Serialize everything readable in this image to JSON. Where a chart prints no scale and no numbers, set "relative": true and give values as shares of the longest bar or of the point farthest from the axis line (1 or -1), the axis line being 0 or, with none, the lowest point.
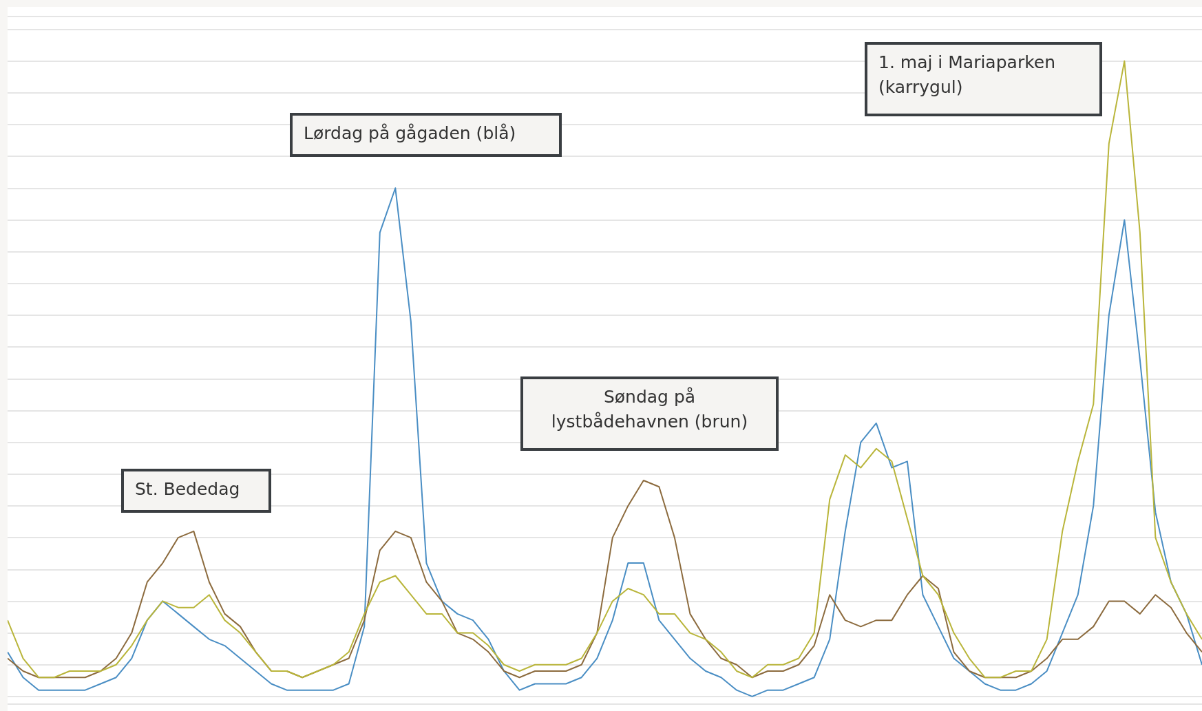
{
  "chart_data": {
    "type": "line",
    "relative": true,
    "grid": "y",
    "marker": "none",
    "categories": [
      null,
      null,
      null,
      null,
      null,
      null,
      null,
      null,
      null,
      null,
      null,
      null,
      null,
      null,
      null,
      null,
      null,
      null,
      null,
      null,
      null,
      null,
      null,
      null,
      null,
      null,
      null,
      null,
      null,
      null,
      null,
      null,
      null,
      null,
      null,
      null,
      null,
      null,
      null,
      null,
      null,
      null,
      null,
      null,
      null,
      null,
      null,
      null,
      null,
      null,
      null,
      null,
      null,
      null,
      null,
      null,
      null,
      null,
      null,
      null,
      null,
      null,
      null,
      null,
      null,
      null,
      null,
      null,
      null,
      null,
      null,
      null,
      null,
      null,
      null,
      null,
      null,
      null
    ],
    "series": [
      {
        "color": "#4a8ec4",
        "values": [
          0.07,
          0.03,
          0.01,
          0.01,
          0.01,
          0.01,
          0.02,
          0.03,
          0.06,
          0.12,
          0.15,
          0.13,
          0.11,
          0.09,
          0.08,
          0.06,
          0.04,
          0.02,
          0.01,
          0.01,
          0.01,
          0.01,
          0.02,
          0.11,
          0.73,
          0.8,
          0.59,
          0.21,
          0.15,
          0.13,
          0.12,
          0.09,
          0.04,
          0.01,
          0.02,
          0.02,
          0.02,
          0.03,
          0.06,
          0.12,
          0.21,
          0.21,
          0.12,
          0.09,
          0.06,
          0.04,
          0.03,
          0.01,
          0.0,
          0.01,
          0.01,
          0.02,
          0.03,
          0.09,
          0.26,
          0.4,
          0.43,
          0.36,
          0.37,
          0.16,
          0.11,
          0.06,
          0.04,
          0.02,
          0.01,
          0.01,
          0.02,
          0.04,
          0.1,
          0.16,
          0.3,
          0.6,
          0.75,
          0.53,
          0.29,
          0.18,
          0.13,
          0.05
        ]
      },
      {
        "color": "#8c6b3e",
        "values": [
          0.06,
          0.04,
          0.03,
          0.03,
          0.03,
          0.03,
          0.04,
          0.06,
          0.1,
          0.18,
          0.21,
          0.25,
          0.26,
          0.18,
          0.13,
          0.11,
          0.07,
          0.04,
          0.04,
          0.03,
          0.04,
          0.05,
          0.06,
          0.12,
          0.23,
          0.26,
          0.25,
          0.18,
          0.15,
          0.1,
          0.09,
          0.07,
          0.04,
          0.03,
          0.04,
          0.04,
          0.04,
          0.05,
          0.1,
          0.25,
          0.3,
          0.34,
          0.33,
          0.25,
          0.13,
          0.09,
          0.06,
          0.05,
          0.03,
          0.04,
          0.04,
          0.05,
          0.08,
          0.16,
          0.12,
          0.11,
          0.12,
          0.12,
          0.16,
          0.19,
          0.17,
          0.07,
          0.04,
          0.03,
          0.03,
          0.03,
          0.04,
          0.06,
          0.09,
          0.09,
          0.11,
          0.15,
          0.15,
          0.13,
          0.16,
          0.14,
          0.1,
          0.07
        ]
      },
      {
        "color": "#b9b53a",
        "values": [
          0.12,
          0.06,
          0.03,
          0.03,
          0.04,
          0.04,
          0.04,
          0.05,
          0.08,
          0.12,
          0.15,
          0.14,
          0.14,
          0.16,
          0.12,
          0.1,
          0.07,
          0.04,
          0.04,
          0.03,
          0.04,
          0.05,
          0.07,
          0.13,
          0.18,
          0.19,
          0.16,
          0.13,
          0.13,
          0.1,
          0.1,
          0.08,
          0.05,
          0.04,
          0.05,
          0.05,
          0.05,
          0.06,
          0.1,
          0.15,
          0.17,
          0.16,
          0.13,
          0.13,
          0.1,
          0.09,
          0.07,
          0.04,
          0.03,
          0.05,
          0.05,
          0.06,
          0.1,
          0.31,
          0.38,
          0.36,
          0.39,
          0.37,
          0.28,
          0.19,
          0.16,
          0.1,
          0.06,
          0.03,
          0.03,
          0.04,
          0.04,
          0.09,
          0.26,
          0.37,
          0.46,
          0.87,
          1.0,
          0.73,
          0.25,
          0.18,
          0.13,
          0.09
        ]
      }
    ],
    "annotations": [
      "St. Bededag",
      "Lørdag på gågaden (blå)",
      "Søndag på lystbådehavnen (brun)",
      "1. maj i Mariaparken (karrygul)"
    ]
  }
}
